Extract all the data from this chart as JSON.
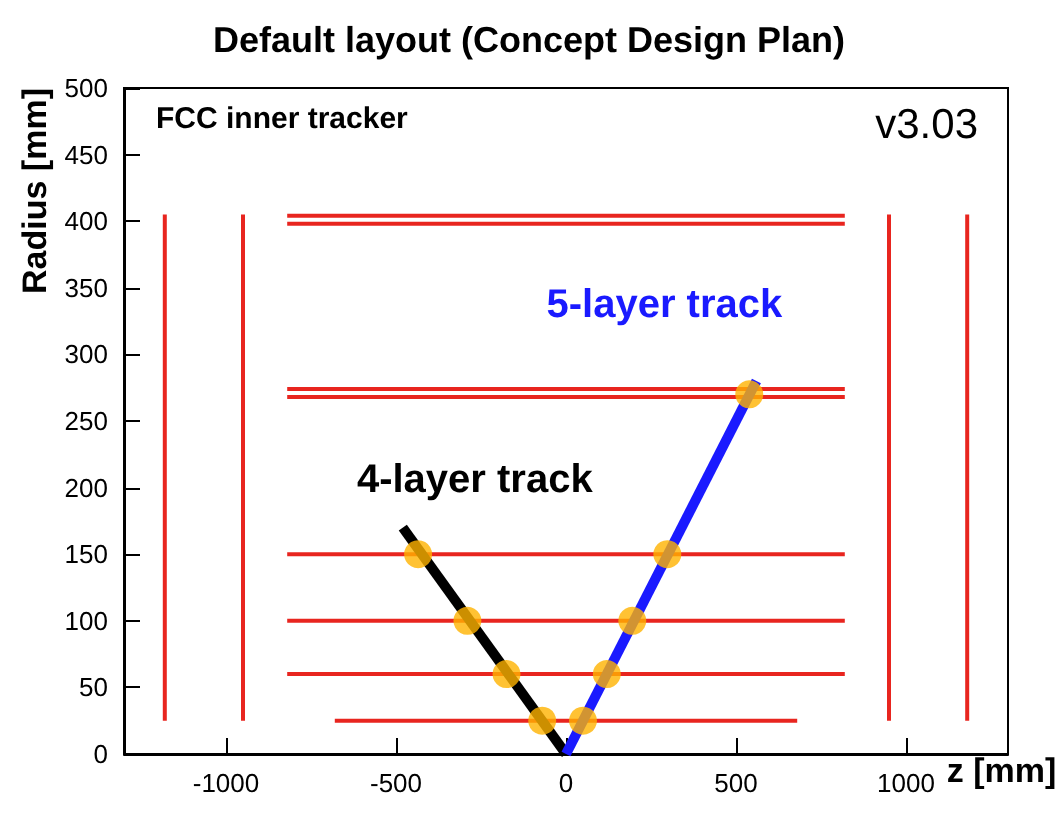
{
  "chart_data": {
    "type": "line",
    "title": "Default layout (Concept Design Plan)",
    "xlabel": "z [mm]",
    "ylabel": "Radius [mm]",
    "annotations": [
      "FCC inner tracker",
      "v3.03"
    ],
    "xlim": [
      -1300,
      1300
    ],
    "xticks": [
      -1000,
      -500,
      0,
      500,
      1000
    ],
    "ylim": [
      0,
      500
    ],
    "yticks": [
      0,
      50,
      100,
      150,
      200,
      250,
      300,
      350,
      400,
      450,
      500
    ],
    "grid": false,
    "legend": false,
    "series": [
      {
        "color": "#e8251f",
        "x": [
          -680,
          680
        ],
        "values": [
          25,
          25
        ]
      },
      {
        "color": "#e8251f",
        "x": [
          -820,
          820
        ],
        "values": [
          60,
          60
        ]
      },
      {
        "color": "#e8251f",
        "x": [
          -820,
          820
        ],
        "values": [
          100,
          100
        ]
      },
      {
        "color": "#e8251f",
        "x": [
          -820,
          820
        ],
        "values": [
          150,
          150
        ]
      },
      {
        "color": "#e8251f",
        "x": [
          -820,
          820
        ],
        "values": [
          268,
          268
        ]
      },
      {
        "color": "#e8251f",
        "x": [
          -820,
          820
        ],
        "values": [
          274,
          274
        ]
      },
      {
        "color": "#e8251f",
        "x": [
          -820,
          820
        ],
        "values": [
          398,
          398
        ]
      },
      {
        "color": "#e8251f",
        "x": [
          -820,
          820
        ],
        "values": [
          404,
          404
        ]
      },
      {
        "color": "#e8251f",
        "x": [
          -1180,
          -1180
        ],
        "values": [
          25,
          405
        ]
      },
      {
        "color": "#e8251f",
        "x": [
          -950,
          -950
        ],
        "values": [
          25,
          405
        ]
      },
      {
        "color": "#e8251f",
        "x": [
          950,
          950
        ],
        "values": [
          25,
          405
        ]
      },
      {
        "color": "#e8251f",
        "x": [
          1180,
          1180
        ],
        "values": [
          25,
          405
        ]
      },
      {
        "name": "4-layer track",
        "color": "#000000",
        "x": [
          0,
          -480
        ],
        "values": [
          0,
          170
        ]
      },
      {
        "name": "5-layer track",
        "color": "#1a1aff",
        "x": [
          0,
          560
        ],
        "values": [
          0,
          280
        ]
      },
      {
        "type": "scatter",
        "marker": "circle",
        "color": "#ffb300",
        "x": [
          -435,
          -290,
          -175,
          -70,
          50,
          120,
          195,
          298,
          539
        ],
        "values": [
          150,
          100,
          60,
          25,
          25,
          60,
          100,
          150,
          270
        ]
      }
    ]
  }
}
